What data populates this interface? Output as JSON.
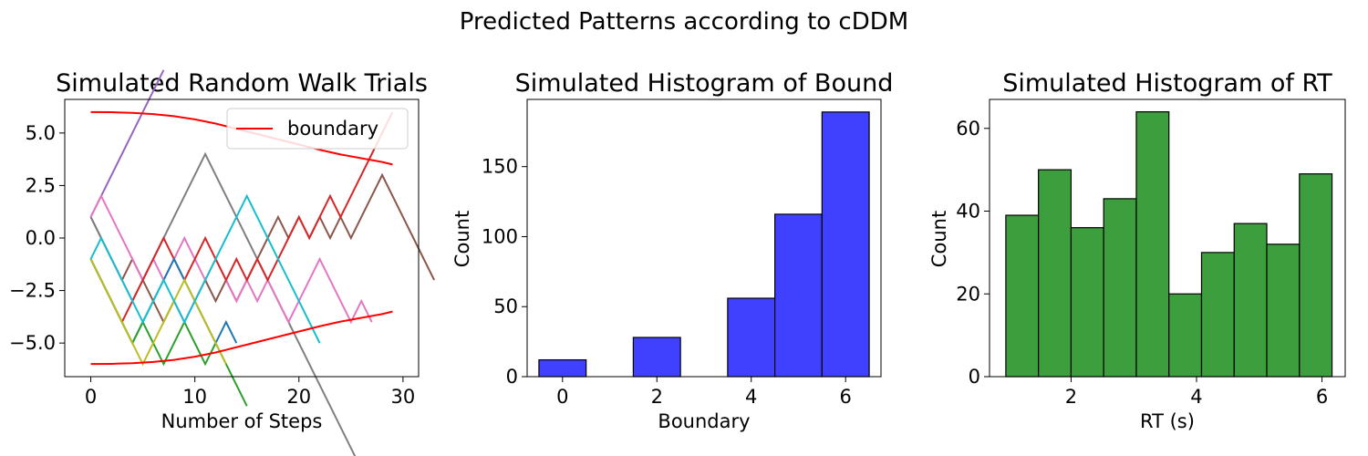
{
  "figure": {
    "suptitle": "Predicted Patterns according to cDDM"
  },
  "chart_data": [
    {
      "type": "line",
      "title": "Simulated Random Walk Trials",
      "xlabel": "Number of Steps",
      "ylabel": "",
      "xlim": [
        -2.5,
        31.5
      ],
      "ylim": [
        -6.6,
        6.6
      ],
      "xticks": [
        0,
        10,
        20,
        30
      ],
      "yticks": [
        5.0,
        2.5,
        0.0,
        -2.5,
        -5.0
      ],
      "xtick_labels": [
        "0",
        "10",
        "20",
        "30"
      ],
      "ytick_labels": [
        "5.0",
        "2.5",
        "0.0",
        "−2.5",
        "−5.0"
      ],
      "grid": false,
      "legend": {
        "position": "top-right",
        "entries": [
          {
            "label": "boundary",
            "color": "#ff0000"
          }
        ]
      },
      "boundary": {
        "name": "boundary",
        "color": "#ff0000",
        "x": [
          0,
          2,
          4,
          6,
          8,
          10,
          12,
          14,
          16,
          18,
          20,
          22,
          24,
          26,
          28,
          29
        ],
        "upper": [
          6.0,
          5.99,
          5.96,
          5.9,
          5.8,
          5.65,
          5.45,
          5.2,
          4.95,
          4.7,
          4.45,
          4.2,
          3.98,
          3.8,
          3.62,
          3.5
        ],
        "lower": [
          -6.0,
          -5.99,
          -5.96,
          -5.9,
          -5.8,
          -5.65,
          -5.45,
          -5.2,
          -4.95,
          -4.7,
          -4.45,
          -4.2,
          -3.98,
          -3.8,
          -3.62,
          -3.5
        ]
      },
      "series": [
        {
          "color": "#9467bd",
          "start": 1,
          "steps": [
            1,
            1,
            1,
            1,
            1,
            1,
            1
          ]
        },
        {
          "color": "#8c564b",
          "start": 1,
          "steps": [
            -1,
            -1,
            -1,
            1,
            -1,
            -1,
            -1,
            1,
            -1,
            1,
            1,
            -1,
            1,
            -1,
            1,
            1,
            1,
            1,
            -1,
            1,
            -1,
            1,
            -1,
            1,
            -1,
            1,
            1,
            1,
            -1,
            -1,
            -1,
            -1,
            -1
          ]
        },
        {
          "color": "#7f7f7f",
          "start": 1,
          "steps": [
            -1,
            -1,
            -1,
            -1,
            1,
            1,
            1,
            1,
            1,
            1,
            1,
            -1,
            -1,
            -1,
            -1,
            -1,
            -1,
            -1,
            -1,
            -1,
            -1,
            -1,
            -1,
            -1,
            -1,
            -1
          ]
        },
        {
          "color": "#e377c2",
          "start": 1,
          "steps": [
            1,
            -1,
            -1,
            -1,
            -1,
            1,
            -1,
            1,
            1,
            -1,
            -1,
            1,
            -1,
            -1,
            1,
            -1,
            1,
            -1,
            -1,
            1,
            1,
            1,
            -1,
            -1,
            -1,
            1,
            -1
          ]
        },
        {
          "color": "#d62728",
          "start": -1,
          "steps": [
            -1,
            -1,
            -1,
            1,
            1,
            1,
            1,
            -1,
            -1,
            1,
            1,
            -1,
            -1,
            1,
            -1,
            1,
            -1,
            1,
            1,
            1,
            -1,
            1,
            1,
            -1,
            1,
            1,
            1,
            1,
            1
          ]
        },
        {
          "color": "#1f77b4",
          "start": -1,
          "steps": [
            -1,
            -1,
            -1,
            -1,
            1,
            1,
            1,
            1,
            -1,
            -1,
            -1,
            -1,
            1,
            -1
          ]
        },
        {
          "color": "#2ca02c",
          "start": -1,
          "steps": [
            -1,
            -1,
            -1,
            -1,
            1,
            -1,
            -1,
            1,
            1,
            -1,
            -1,
            1,
            -1,
            -1,
            -1
          ]
        },
        {
          "color": "#bcbd22",
          "start": -1,
          "steps": [
            -1,
            -1,
            -1,
            -1,
            -1,
            1,
            1,
            1,
            1,
            -1,
            -1,
            -1,
            -1
          ]
        },
        {
          "color": "#17becf",
          "start": -1,
          "steps": [
            1,
            -1,
            -1,
            -1,
            -1,
            1,
            1,
            -1,
            -1,
            1,
            1,
            1,
            1,
            1,
            1,
            -1,
            -1,
            -1,
            -1,
            -1,
            -1,
            -1
          ]
        }
      ]
    },
    {
      "type": "bar",
      "title": "Simulated Histogram of Bound",
      "xlabel": "Boundary",
      "ylabel": "Count",
      "xlim": [
        -0.75,
        6.75
      ],
      "ylim": [
        0,
        198
      ],
      "xticks": [
        0,
        2,
        4,
        6
      ],
      "yticks": [
        0,
        50,
        100,
        150
      ],
      "xtick_labels": [
        "0",
        "2",
        "4",
        "6"
      ],
      "ytick_labels": [
        "0",
        "50",
        "100",
        "150"
      ],
      "grid": false,
      "color": "#4040ff",
      "bins": [
        {
          "x0": -0.5,
          "x1": 0.5,
          "value": 12
        },
        {
          "x0": 1.5,
          "x1": 2.5,
          "value": 28
        },
        {
          "x0": 3.5,
          "x1": 4.5,
          "value": 56
        },
        {
          "x0": 4.5,
          "x1": 5.5,
          "value": 116
        },
        {
          "x0": 5.5,
          "x1": 6.5,
          "value": 189
        }
      ]
    },
    {
      "type": "bar",
      "title": "Simulated Histogram of RT",
      "xlabel": "RT (s)",
      "ylabel": "Count",
      "xlim": [
        0.7,
        6.37
      ],
      "ylim": [
        0,
        67
      ],
      "xticks": [
        2,
        4,
        6
      ],
      "yticks": [
        0,
        20,
        40,
        60
      ],
      "xtick_labels": [
        "2",
        "4",
        "6"
      ],
      "ytick_labels": [
        "0",
        "20",
        "40",
        "60"
      ],
      "grid": false,
      "color": "#3c9e3c",
      "bins": [
        {
          "x0": 0.96,
          "x1": 1.48,
          "value": 39
        },
        {
          "x0": 1.48,
          "x1": 2.0,
          "value": 50
        },
        {
          "x0": 2.0,
          "x1": 2.52,
          "value": 36
        },
        {
          "x0": 2.52,
          "x1": 3.04,
          "value": 43
        },
        {
          "x0": 3.04,
          "x1": 3.56,
          "value": 64
        },
        {
          "x0": 3.56,
          "x1": 4.08,
          "value": 20
        },
        {
          "x0": 4.08,
          "x1": 4.6,
          "value": 30
        },
        {
          "x0": 4.6,
          "x1": 5.12,
          "value": 37
        },
        {
          "x0": 5.12,
          "x1": 5.64,
          "value": 32
        },
        {
          "x0": 5.64,
          "x1": 6.16,
          "value": 49
        }
      ]
    }
  ]
}
